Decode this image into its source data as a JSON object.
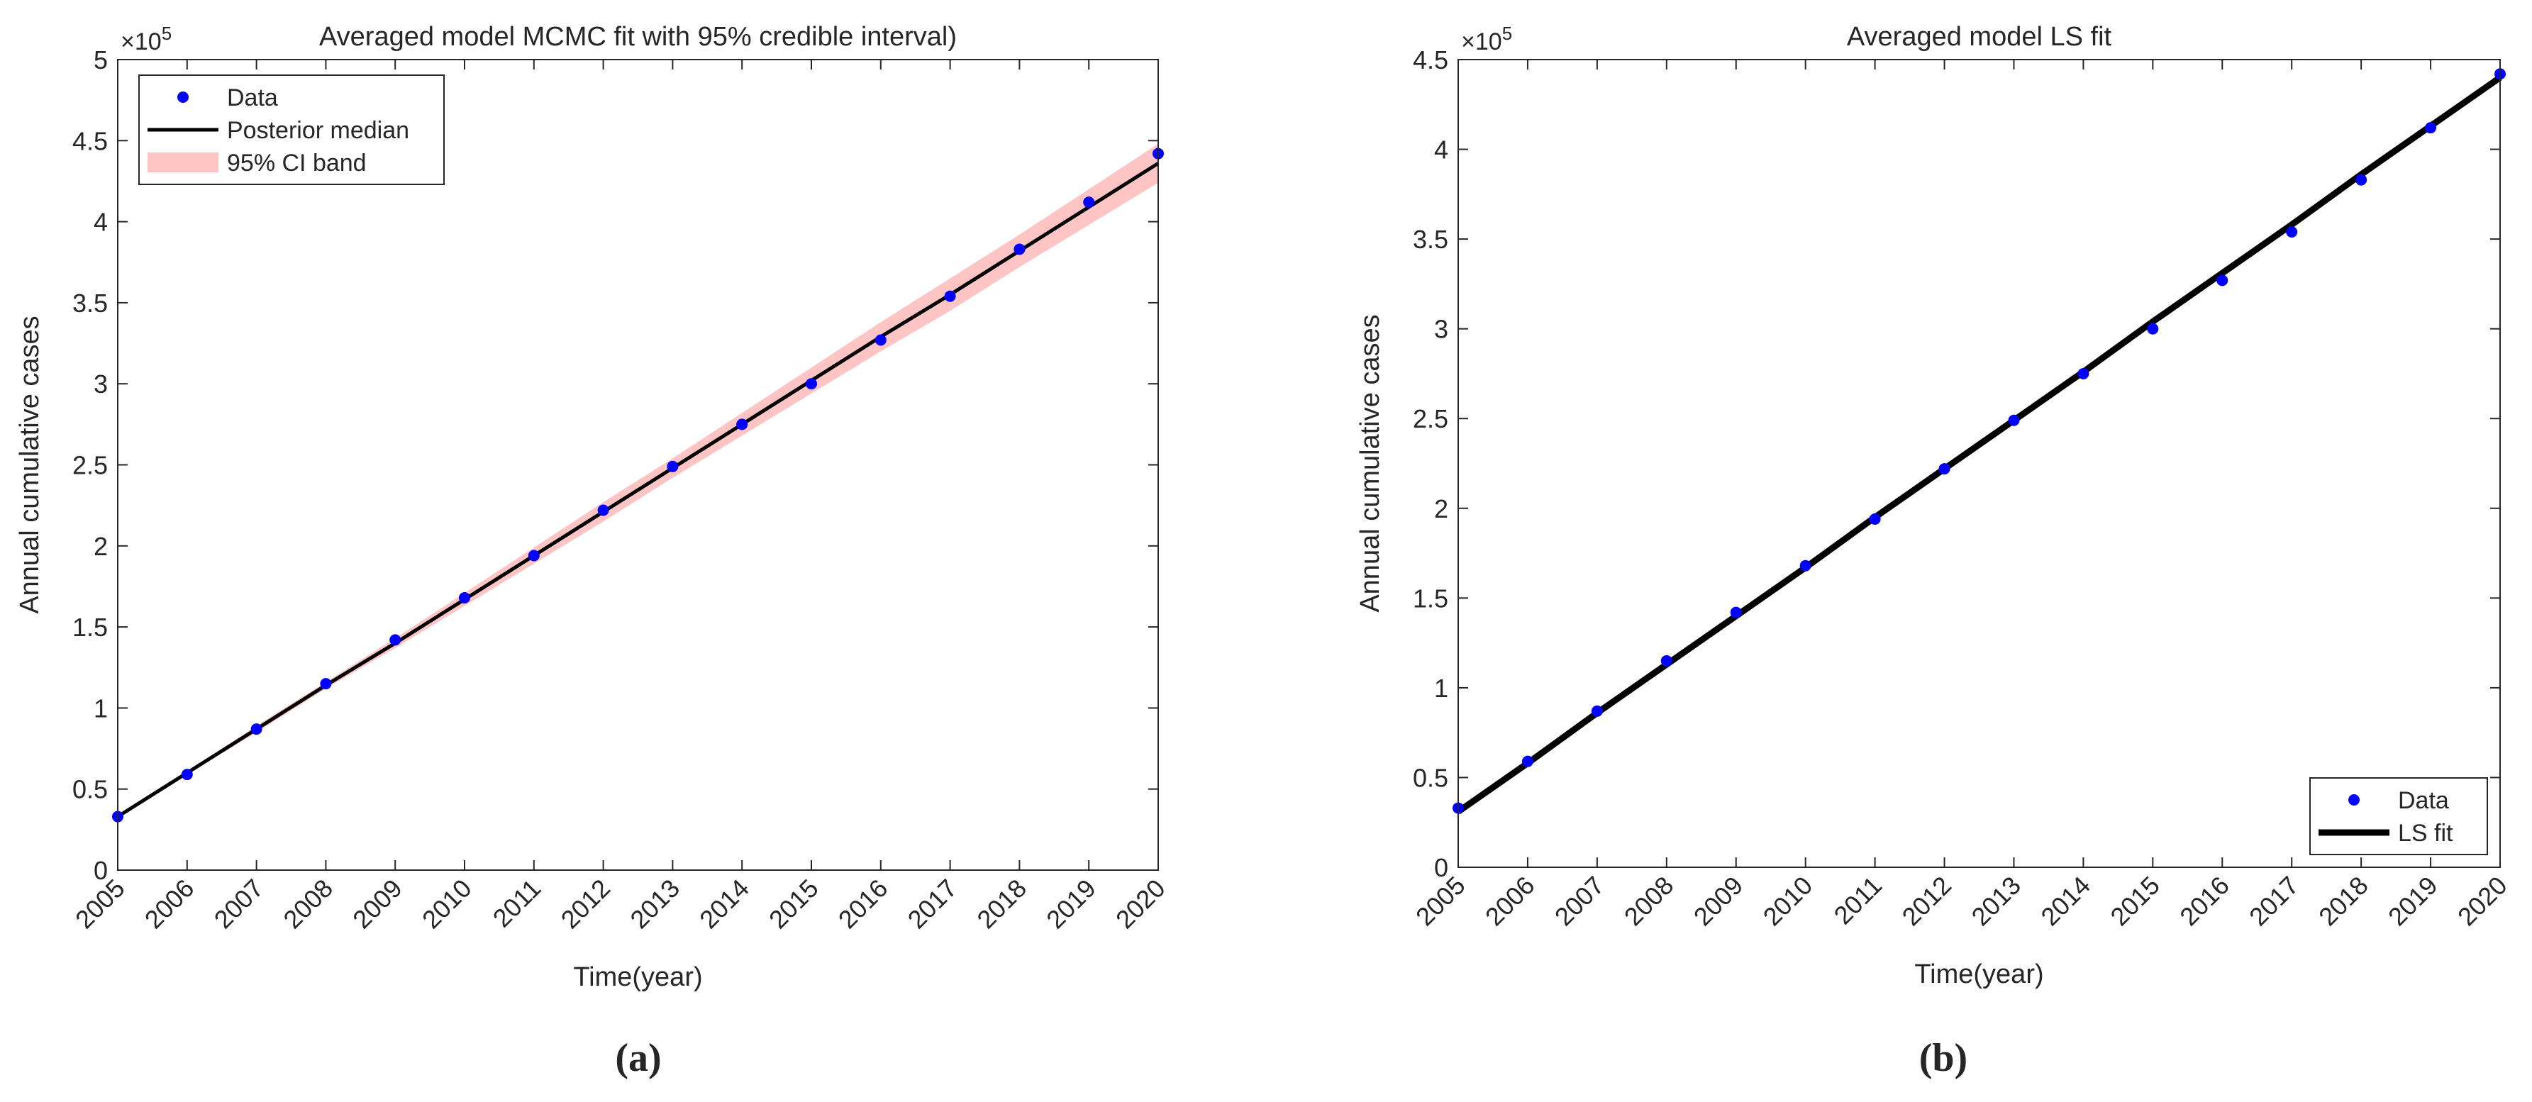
{
  "chart_data": [
    {
      "type": "line",
      "title": "Averaged model MCMC fit with 95% credible interval)",
      "xlabel": "Time(year)",
      "ylabel": "Annual cumulative cases",
      "y_multiplier": {
        "base": "×10",
        "exponent": "5"
      },
      "caption": "(a)",
      "x": [
        2005,
        2006,
        2007,
        2008,
        2009,
        2010,
        2011,
        2012,
        2013,
        2014,
        2015,
        2016,
        2017,
        2018,
        2019,
        2020
      ],
      "xlim": [
        2005,
        2020
      ],
      "xticks": [
        2005,
        2006,
        2007,
        2008,
        2009,
        2010,
        2011,
        2012,
        2013,
        2014,
        2015,
        2016,
        2017,
        2018,
        2019,
        2020
      ],
      "ylim": [
        0,
        5
      ],
      "yticks": [
        0,
        0.5,
        1,
        1.5,
        2,
        2.5,
        3,
        3.5,
        4,
        4.5,
        5
      ],
      "legend": "upper left",
      "series": [
        {
          "name": "Data",
          "color": "#0000ff",
          "mode": "markers",
          "values": [
            0.33,
            0.59,
            0.87,
            1.15,
            1.42,
            1.68,
            1.94,
            2.22,
            2.49,
            2.75,
            3.0,
            3.27,
            3.54,
            3.83,
            4.12,
            4.42
          ]
        },
        {
          "name": "Posterior median",
          "color": "#000000",
          "mode": "line",
          "values": [
            0.33,
            0.6,
            0.87,
            1.14,
            1.4,
            1.67,
            1.94,
            2.21,
            2.48,
            2.75,
            3.02,
            3.29,
            3.55,
            3.82,
            4.09,
            4.36
          ]
        }
      ],
      "band": {
        "name": "95% CI band",
        "color": "#ffc4c4",
        "lower": [
          0.33,
          0.59,
          0.85,
          1.12,
          1.37,
          1.63,
          1.89,
          2.15,
          2.42,
          2.68,
          2.94,
          3.2,
          3.45,
          3.72,
          3.98,
          4.24
        ],
        "upper": [
          0.33,
          0.61,
          0.89,
          1.16,
          1.43,
          1.71,
          1.99,
          2.27,
          2.54,
          2.82,
          3.1,
          3.38,
          3.65,
          3.92,
          4.2,
          4.48
        ]
      }
    },
    {
      "type": "line",
      "title": "Averaged model LS fit",
      "xlabel": "Time(year)",
      "ylabel": "Annual cumulative cases",
      "y_multiplier": {
        "base": "×10",
        "exponent": "5"
      },
      "caption": "(b)",
      "x": [
        2005,
        2006,
        2007,
        2008,
        2009,
        2010,
        2011,
        2012,
        2013,
        2014,
        2015,
        2016,
        2017,
        2018,
        2019,
        2020
      ],
      "xlim": [
        2005,
        2020
      ],
      "xticks": [
        2005,
        2006,
        2007,
        2008,
        2009,
        2010,
        2011,
        2012,
        2013,
        2014,
        2015,
        2016,
        2017,
        2018,
        2019,
        2020
      ],
      "ylim": [
        0,
        4.5
      ],
      "yticks": [
        0,
        0.5,
        1,
        1.5,
        2,
        2.5,
        3,
        3.5,
        4,
        4.5
      ],
      "legend": "lower right",
      "series": [
        {
          "name": "Data",
          "color": "#0000ff",
          "mode": "markers",
          "values": [
            0.33,
            0.59,
            0.87,
            1.15,
            1.42,
            1.68,
            1.94,
            2.22,
            2.49,
            2.75,
            3.0,
            3.27,
            3.54,
            3.83,
            4.12,
            4.42
          ]
        },
        {
          "name": "LS fit",
          "color": "#000000",
          "mode": "line",
          "values": [
            0.31,
            0.58,
            0.86,
            1.13,
            1.4,
            1.67,
            1.95,
            2.22,
            2.49,
            2.76,
            3.04,
            3.31,
            3.58,
            3.86,
            4.13,
            4.4
          ]
        }
      ]
    }
  ]
}
